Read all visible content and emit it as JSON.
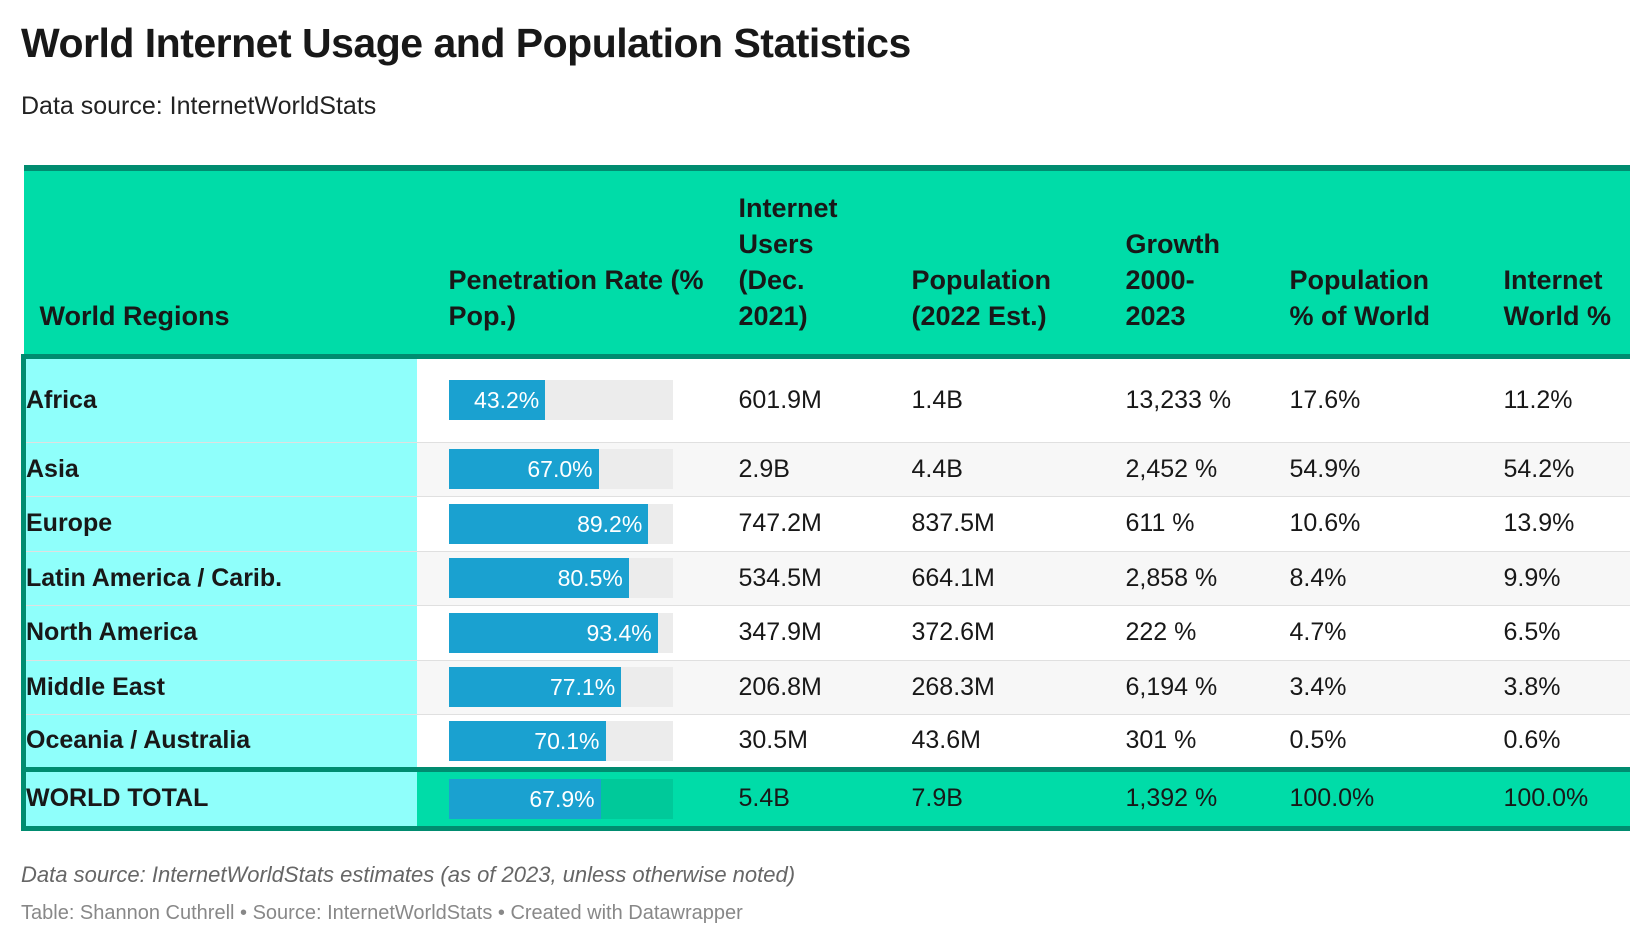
{
  "title": "World Internet Usage and Population Statistics",
  "subtitle": "Data source: InternetWorldStats",
  "note": "Data source: InternetWorldStats estimates (as of 2023, unless otherwise noted)",
  "credit": "Table: Shannon Cuthrell • Source: InternetWorldStats • Created with Datawrapper",
  "colors": {
    "header": "#00dca8",
    "border": "#008c70",
    "region": "#8ffffb",
    "bar": "#1aa1d0",
    "bar_bg": "#ececec"
  },
  "chart_data": {
    "type": "table",
    "columns": [
      "World Regions",
      "Penetration Rate (% Pop.)",
      "Internet Users (Dec. 2021)",
      "Population (2022 Est.)",
      "Growth 2000-2023",
      "Population % of World",
      "Internet World %"
    ],
    "rows": [
      {
        "region": "Africa",
        "penetration": 43.2,
        "pen_label": "43.2%",
        "users": "601.9M",
        "population": "1.4B",
        "growth": "13,233 %",
        "pop_pct": "17.6%",
        "inet_pct": "11.2%"
      },
      {
        "region": "Asia",
        "penetration": 67.0,
        "pen_label": "67.0%",
        "users": "2.9B",
        "population": "4.4B",
        "growth": "2,452 %",
        "pop_pct": "54.9%",
        "inet_pct": "54.2%"
      },
      {
        "region": "Europe",
        "penetration": 89.2,
        "pen_label": "89.2%",
        "users": "747.2M",
        "population": "837.5M",
        "growth": "611 %",
        "pop_pct": "10.6%",
        "inet_pct": "13.9%"
      },
      {
        "region": "Latin America / Carib.",
        "penetration": 80.5,
        "pen_label": "80.5%",
        "users": "534.5M",
        "population": "664.1M",
        "growth": "2,858 %",
        "pop_pct": "8.4%",
        "inet_pct": "9.9%"
      },
      {
        "region": "North America",
        "penetration": 93.4,
        "pen_label": "93.4%",
        "users": "347.9M",
        "population": "372.6M",
        "growth": "222 %",
        "pop_pct": "4.7%",
        "inet_pct": "6.5%"
      },
      {
        "region": "Middle East",
        "penetration": 77.1,
        "pen_label": "77.1%",
        "users": "206.8M",
        "population": "268.3M",
        "growth": "6,194 %",
        "pop_pct": "3.4%",
        "inet_pct": "3.8%"
      },
      {
        "region": "Oceania / Australia",
        "penetration": 70.1,
        "pen_label": "70.1%",
        "users": "30.5M",
        "population": "43.6M",
        "growth": "301 %",
        "pop_pct": "0.5%",
        "inet_pct": "0.6%"
      }
    ],
    "total": {
      "region": "WORLD TOTAL",
      "penetration": 67.9,
      "pen_label": "67.9%",
      "users": "5.4B",
      "population": "7.9B",
      "growth": "1,392 %",
      "pop_pct": "100.0%",
      "inet_pct": "100.0%"
    }
  }
}
